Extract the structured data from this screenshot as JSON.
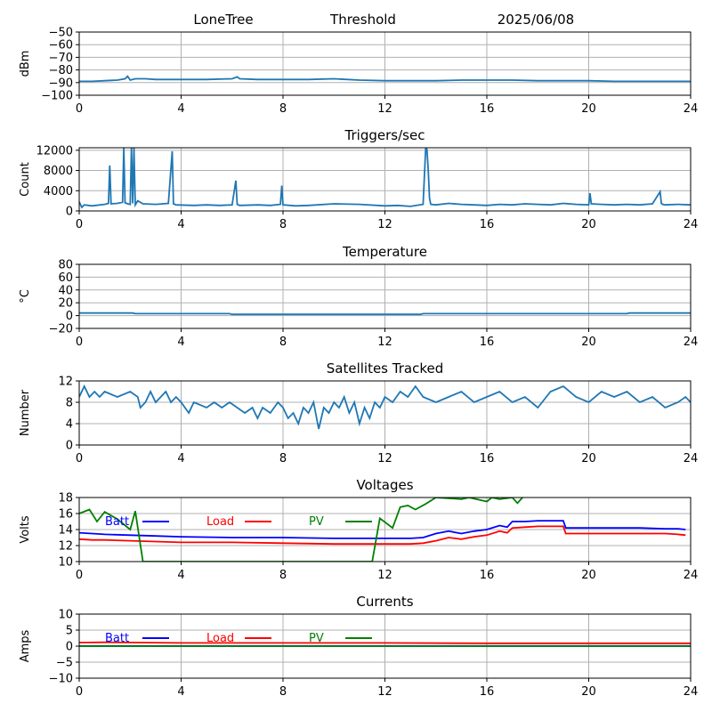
{
  "header": {
    "station": "LoneTree",
    "mode": "Threshold",
    "date": "2025/06/08"
  },
  "colors": {
    "series": "#1f77b4",
    "batt": "#0000ff",
    "load": "#ff0000",
    "pv": "#008000",
    "grid": "#b0b0b0"
  },
  "chart_data": [
    {
      "id": "signal",
      "type": "line",
      "title": "",
      "ylabel": "dBm",
      "xlim": [
        0,
        24
      ],
      "ylim": [
        -100,
        -50
      ],
      "xticks": [
        0,
        4,
        8,
        12,
        16,
        20,
        24
      ],
      "yticks": [
        -100,
        -90,
        -80,
        -70,
        -60,
        -50
      ],
      "series": [
        {
          "color": "#1f77b4",
          "x": [
            0,
            0.5,
            1,
            1.5,
            1.8,
            1.9,
            2.0,
            2.2,
            2.6,
            3,
            4,
            5,
            6,
            6.2,
            6.3,
            7,
            8,
            9,
            10,
            11,
            12,
            13,
            14,
            15,
            16,
            17,
            18,
            19,
            20,
            21,
            22,
            23,
            24
          ],
          "y": [
            -89,
            -89,
            -88.5,
            -88,
            -87,
            -85,
            -88,
            -87,
            -87,
            -87.5,
            -87.5,
            -87.5,
            -87,
            -85.5,
            -87,
            -87.5,
            -87.5,
            -87.5,
            -87,
            -88,
            -88.5,
            -88.5,
            -88.5,
            -88,
            -88,
            -88,
            -88.5,
            -88.5,
            -88.5,
            -89,
            -89,
            -89,
            -89
          ]
        }
      ]
    },
    {
      "id": "triggers",
      "type": "line",
      "title": "Triggers/sec",
      "ylabel": "Count",
      "xlim": [
        0,
        24
      ],
      "ylim": [
        0,
        12500
      ],
      "xticks": [
        0,
        4,
        8,
        12,
        16,
        20,
        24
      ],
      "yticks": [
        0,
        4000,
        8000,
        12000
      ],
      "series": [
        {
          "color": "#1f77b4",
          "x": [
            0,
            0.1,
            0.2,
            0.5,
            1.0,
            1.15,
            1.2,
            1.25,
            1.5,
            1.7,
            1.75,
            1.8,
            1.9,
            2.0,
            2.05,
            2.1,
            2.15,
            2.2,
            2.3,
            2.5,
            3.0,
            3.5,
            3.65,
            3.7,
            3.8,
            4.5,
            5,
            5.5,
            6,
            6.15,
            6.2,
            6.3,
            7,
            7.5,
            7.9,
            7.95,
            8.0,
            8.5,
            9,
            10,
            11,
            12,
            12.5,
            13,
            13.5,
            13.6,
            13.65,
            13.7,
            13.75,
            13.8,
            14,
            14.5,
            15,
            15.5,
            16,
            16.5,
            17,
            17.5,
            18,
            18.5,
            19,
            19.5,
            20,
            20.05,
            20.1,
            20.5,
            21,
            21.5,
            22,
            22.5,
            22.8,
            22.85,
            22.9,
            23,
            23.5,
            24
          ],
          "y": [
            1800,
            700,
            1200,
            1000,
            1300,
            1500,
            9000,
            1400,
            1500,
            1700,
            12500,
            1600,
            1400,
            1300,
            12500,
            1500,
            12500,
            1200,
            2000,
            1400,
            1300,
            1500,
            11800,
            1400,
            1200,
            1100,
            1200,
            1100,
            1200,
            6000,
            1300,
            1100,
            1200,
            1100,
            1300,
            5000,
            1200,
            1000,
            1100,
            1400,
            1300,
            1000,
            1100,
            900,
            1300,
            12400,
            12200,
            8000,
            2500,
            1300,
            1200,
            1500,
            1300,
            1200,
            1100,
            1300,
            1200,
            1400,
            1300,
            1200,
            1500,
            1300,
            1200,
            3500,
            1400,
            1300,
            1200,
            1300,
            1200,
            1400,
            3800,
            1500,
            1300,
            1200,
            1300,
            1200
          ]
        }
      ]
    },
    {
      "id": "temperature",
      "type": "line",
      "title": "Temperature",
      "ylabel": "°C",
      "xlim": [
        0,
        24
      ],
      "ylim": [
        -20,
        80
      ],
      "xticks": [
        0,
        4,
        8,
        12,
        16,
        20,
        24
      ],
      "yticks": [
        -20,
        0,
        20,
        40,
        60,
        80
      ],
      "series": [
        {
          "color": "#1f77b4",
          "x": [
            0,
            2.1,
            2.2,
            5.9,
            6.0,
            13.4,
            13.5,
            21.5,
            21.6,
            24
          ],
          "y": [
            4,
            4,
            3,
            3,
            2,
            2,
            3,
            3,
            4,
            4
          ]
        }
      ]
    },
    {
      "id": "satellites",
      "type": "line",
      "title": "Satellites Tracked",
      "ylabel": "Number",
      "xlim": [
        0,
        24
      ],
      "ylim": [
        0,
        12
      ],
      "xticks": [
        0,
        4,
        8,
        12,
        16,
        20,
        24
      ],
      "yticks": [
        0,
        4,
        8,
        12
      ],
      "series": [
        {
          "color": "#1f77b4",
          "x": [
            0,
            0.2,
            0.4,
            0.6,
            0.8,
            1,
            1.5,
            2,
            2.3,
            2.4,
            2.6,
            2.8,
            3,
            3.2,
            3.4,
            3.6,
            3.8,
            4,
            4.3,
            4.5,
            5,
            5.3,
            5.6,
            5.9,
            6.2,
            6.5,
            6.8,
            7.0,
            7.2,
            7.5,
            7.8,
            8,
            8.2,
            8.4,
            8.6,
            8.8,
            9,
            9.2,
            9.4,
            9.6,
            9.8,
            10,
            10.2,
            10.4,
            10.6,
            10.8,
            11,
            11.2,
            11.4,
            11.6,
            11.8,
            12,
            12.3,
            12.6,
            12.9,
            13.2,
            13.5,
            14,
            14.5,
            15,
            15.5,
            16,
            16.5,
            17,
            17.5,
            18,
            18.5,
            19,
            19.5,
            20,
            20.5,
            21,
            21.5,
            22,
            22.5,
            23,
            23.5,
            23.8,
            24
          ],
          "y": [
            9,
            11,
            9,
            10,
            9,
            10,
            9,
            10,
            9,
            7,
            8,
            10,
            8,
            9,
            10,
            8,
            9,
            8,
            6,
            8,
            7,
            8,
            7,
            8,
            7,
            6,
            7,
            5,
            7,
            6,
            8,
            7,
            5,
            6,
            4,
            7,
            6,
            8,
            3,
            7,
            6,
            8,
            7,
            9,
            6,
            8,
            4,
            7,
            5,
            8,
            7,
            9,
            8,
            10,
            9,
            11,
            9,
            8,
            9,
            10,
            8,
            9,
            10,
            8,
            9,
            7,
            10,
            11,
            9,
            8,
            10,
            9,
            10,
            8,
            9,
            7,
            8,
            9,
            8
          ]
        }
      ]
    },
    {
      "id": "voltages",
      "type": "line",
      "title": "Voltages",
      "ylabel": "Volts",
      "xlim": [
        0,
        24
      ],
      "ylim": [
        10,
        18
      ],
      "xticks": [
        0,
        4,
        8,
        12,
        16,
        20,
        24
      ],
      "yticks": [
        10,
        12,
        14,
        16,
        18
      ],
      "legend": [
        "Batt",
        "Load",
        "PV"
      ],
      "series": [
        {
          "name": "Batt",
          "color": "#0000ff",
          "x": [
            0,
            0.5,
            1,
            2,
            3,
            4,
            6,
            8,
            10,
            11,
            12,
            13,
            13.5,
            14,
            14.5,
            15,
            15.5,
            16,
            16.5,
            16.8,
            17,
            17.5,
            18,
            18.5,
            19,
            19.1,
            20,
            21,
            22,
            23,
            23.5,
            23.8
          ],
          "y": [
            13.6,
            13.5,
            13.4,
            13.3,
            13.2,
            13.1,
            13.0,
            13.0,
            12.9,
            12.9,
            12.9,
            12.9,
            13.0,
            13.5,
            13.8,
            13.5,
            13.8,
            14.0,
            14.5,
            14.3,
            15.0,
            15.0,
            15.1,
            15.1,
            15.1,
            14.2,
            14.2,
            14.2,
            14.2,
            14.1,
            14.1,
            14.0
          ]
        },
        {
          "name": "Load",
          "color": "#ff0000",
          "x": [
            0,
            0.5,
            1,
            2,
            3,
            4,
            6,
            8,
            10,
            11,
            12,
            13,
            13.5,
            14,
            14.5,
            15,
            15.5,
            16,
            16.5,
            16.8,
            17,
            17.5,
            18,
            18.5,
            19,
            19.1,
            20,
            21,
            22,
            23,
            23.5,
            23.8
          ],
          "y": [
            12.8,
            12.7,
            12.7,
            12.6,
            12.5,
            12.4,
            12.4,
            12.3,
            12.2,
            12.2,
            12.2,
            12.2,
            12.3,
            12.6,
            13.0,
            12.8,
            13.1,
            13.3,
            13.8,
            13.6,
            14.2,
            14.3,
            14.4,
            14.4,
            14.4,
            13.5,
            13.5,
            13.5,
            13.5,
            13.5,
            13.4,
            13.3
          ]
        },
        {
          "name": "PV",
          "color": "#008000",
          "x": [
            0,
            0.4,
            0.7,
            1.0,
            1.5,
            2.0,
            2.2,
            2.5,
            11.5,
            11.8,
            12.3,
            12.6,
            12.9,
            13.2,
            13.6,
            14,
            15,
            15.3,
            16,
            16.2,
            16.5,
            17,
            17.2,
            17.4
          ],
          "y": [
            16.0,
            16.5,
            15.0,
            16.2,
            15.3,
            14.0,
            16.3,
            10.0,
            10.0,
            15.4,
            14.2,
            16.8,
            17.0,
            16.5,
            17.2,
            18.0,
            17.8,
            18.0,
            17.5,
            18.0,
            17.8,
            18.0,
            17.3,
            18.0
          ]
        }
      ]
    },
    {
      "id": "currents",
      "type": "line",
      "title": "Currents",
      "ylabel": "Amps",
      "xlim": [
        0,
        24
      ],
      "ylim": [
        -10,
        10
      ],
      "xticks": [
        0,
        4,
        8,
        12,
        16,
        20,
        24
      ],
      "yticks": [
        -10,
        -5,
        0,
        5,
        10
      ],
      "legend": [
        "Batt",
        "Load",
        "PV"
      ],
      "series": [
        {
          "name": "Batt",
          "color": "#0000ff",
          "x": [
            0,
            24
          ],
          "y": [
            0.05,
            0.05
          ]
        },
        {
          "name": "Load",
          "color": "#ff0000",
          "x": [
            0,
            1,
            4,
            8,
            12,
            16,
            20,
            24
          ],
          "y": [
            1.1,
            1.2,
            1.0,
            1.0,
            1.0,
            0.9,
            0.9,
            0.9
          ]
        },
        {
          "name": "PV",
          "color": "#008000",
          "x": [
            0,
            24
          ],
          "y": [
            0.0,
            0.0
          ]
        }
      ]
    }
  ]
}
